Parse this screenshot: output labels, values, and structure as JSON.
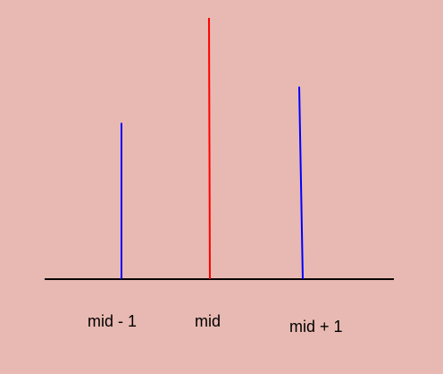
{
  "diagram": {
    "labels": {
      "left": "mid - 1",
      "middle": "mid",
      "right": "mid + 1"
    },
    "bars": [
      {
        "id": "left",
        "relative_height": 0.598,
        "color": "#0000ff"
      },
      {
        "id": "middle",
        "relative_height": 1.0,
        "color": "#ff0000"
      },
      {
        "id": "right",
        "relative_height": 0.737,
        "color": "#0000ff"
      }
    ],
    "colors": {
      "background": "#e8b9b2",
      "baseline": "#000000",
      "highlight": "#ff0000",
      "neighbor": "#0000ff"
    }
  }
}
